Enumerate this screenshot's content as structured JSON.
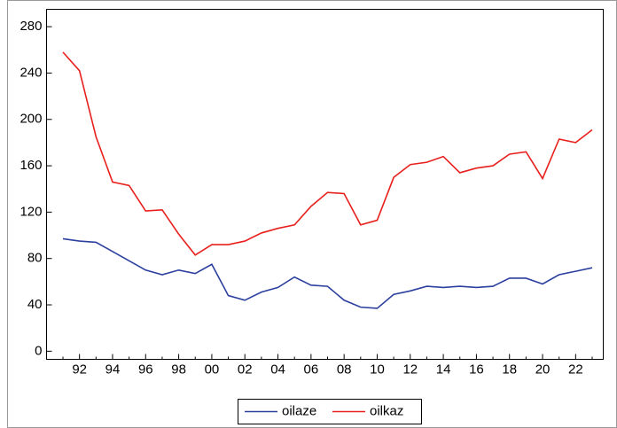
{
  "chart_data": {
    "type": "line",
    "categories": [
      null,
      "92",
      null,
      "94",
      null,
      "96",
      null,
      "98",
      null,
      "00",
      null,
      "02",
      null,
      "04",
      null,
      "06",
      null,
      "08",
      null,
      "10",
      null,
      "12",
      null,
      "14",
      null,
      "16",
      null,
      "18",
      null,
      "20",
      null,
      "22",
      null
    ],
    "series": [
      {
        "name": "oilaze",
        "color": "#2b3f9e",
        "values": [
          97,
          95,
          94,
          86,
          78,
          70,
          66,
          70,
          67,
          75,
          48,
          44,
          51,
          55,
          64,
          57,
          56,
          44,
          38,
          37,
          49,
          52,
          56,
          55,
          56,
          55,
          56,
          63,
          63,
          58,
          66,
          69,
          72
        ]
      },
      {
        "name": "oilkaz",
        "color": "#e8201d",
        "values": [
          258,
          242,
          185,
          146,
          143,
          121,
          122,
          101,
          83,
          92,
          92,
          95,
          102,
          106,
          109,
          125,
          137,
          136,
          109,
          113,
          150,
          161,
          163,
          168,
          154,
          158,
          160,
          170,
          172,
          149,
          183,
          180,
          191
        ]
      }
    ],
    "ylim": [
      -7,
      295
    ],
    "yticks": [
      0,
      40,
      80,
      120,
      160,
      200,
      240,
      280
    ],
    "grid": false,
    "legend": "bottom"
  }
}
